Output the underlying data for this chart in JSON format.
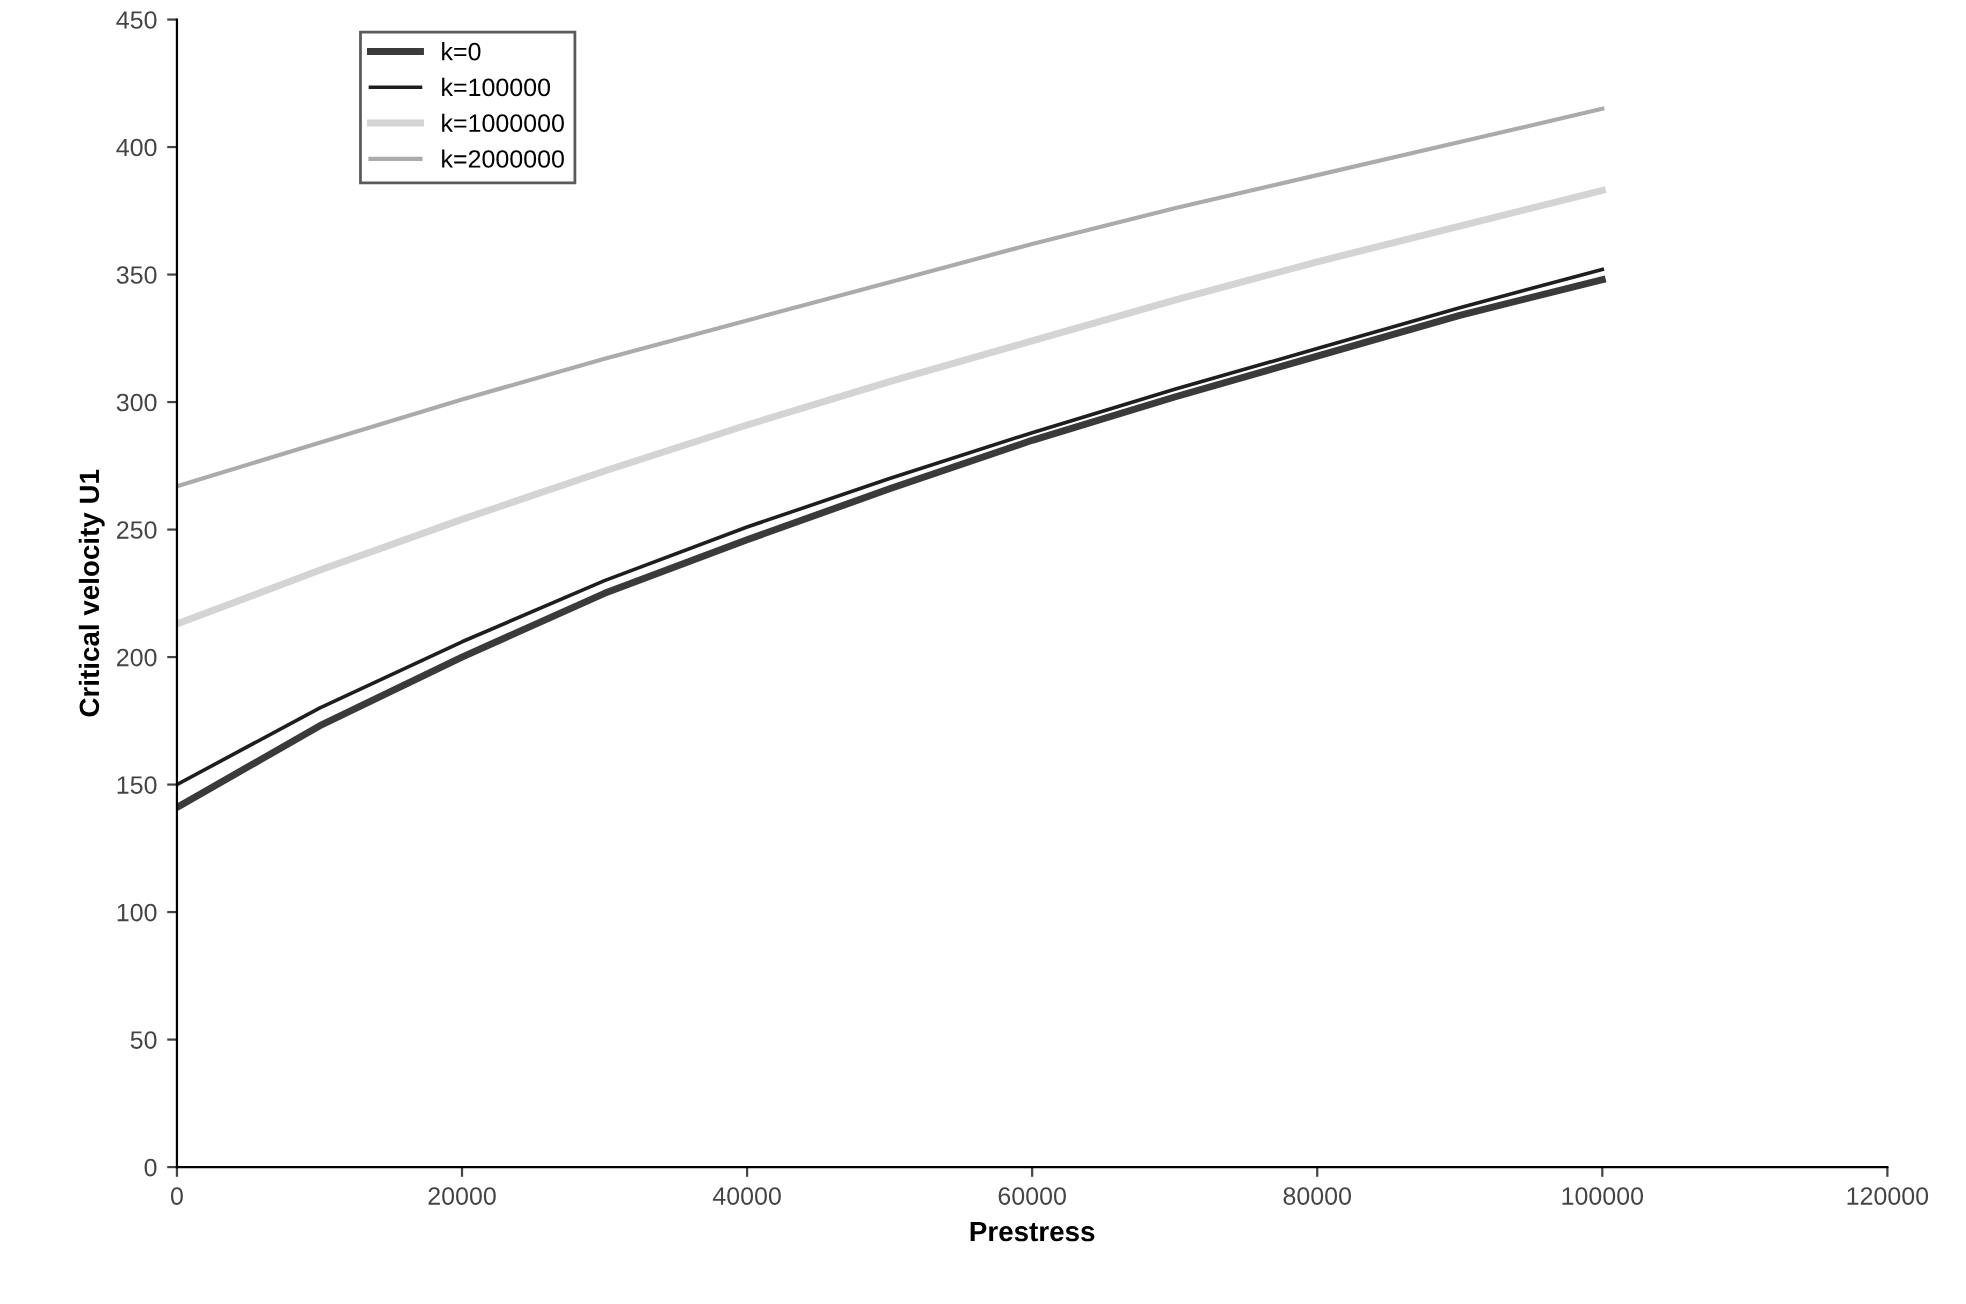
{
  "chart_data": {
    "type": "line",
    "xlabel": "Prestress",
    "ylabel": "Critical velocity U1",
    "x": [
      0,
      10000,
      20000,
      30000,
      40000,
      50000,
      60000,
      70000,
      80000,
      90000,
      100000
    ],
    "xlim": [
      0,
      120000
    ],
    "xticks": [
      0,
      20000,
      40000,
      60000,
      80000,
      100000,
      120000
    ],
    "ylim": [
      0,
      450
    ],
    "yticks": [
      0,
      50,
      100,
      150,
      200,
      250,
      300,
      350,
      400,
      450
    ],
    "grid": false,
    "legend": "top left",
    "marker": "none",
    "line_style": "solid",
    "series": [
      {
        "name": "k=0",
        "color": "#3a3a3a",
        "values": [
          141,
          173,
          200,
          225,
          246,
          266,
          285,
          302,
          318,
          334,
          348
        ]
      },
      {
        "name": "k=100000",
        "color": "#1e1e1e",
        "values": [
          150,
          180,
          206,
          230,
          251,
          270,
          288,
          305,
          321,
          337,
          352
        ]
      },
      {
        "name": "k=1000000",
        "color": "#d4d4d4",
        "values": [
          213,
          234,
          254,
          273,
          291,
          308,
          324,
          340,
          355,
          369,
          383
        ]
      },
      {
        "name": "k=2000000",
        "color": "#ababab",
        "values": [
          267,
          284,
          301,
          317,
          332,
          347,
          362,
          376,
          389,
          402,
          415
        ]
      }
    ]
  }
}
